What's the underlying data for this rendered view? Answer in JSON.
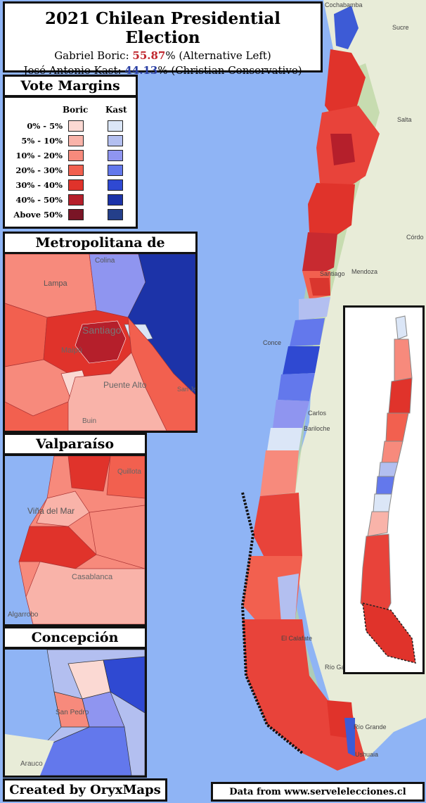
{
  "title": "2021 Chilean Presidential Election",
  "candidates": [
    {
      "prefix": "Gabriel Boric: ",
      "percent": "55.87",
      "suffix": "% (Alternative Left)",
      "color": "#c0262d"
    },
    {
      "prefix": "José Antonio Kast: ",
      "percent": "44.13",
      "suffix": "% (Christian Conservative)",
      "color": "#2a3fa3"
    }
  ],
  "legend": {
    "title": "Vote Margins",
    "col_boric": "Boric",
    "col_kast": "Kast",
    "rows": [
      {
        "label": "0% - 5%",
        "boric": "#fbd9d3",
        "kast": "#dbe6f7"
      },
      {
        "label": "5% - 10%",
        "boric": "#f9b3a9",
        "kast": "#b3bff0"
      },
      {
        "label": "10% - 20%",
        "boric": "#f78a7c",
        "kast": "#8f95f0"
      },
      {
        "label": "20% - 30%",
        "boric": "#f2604f",
        "kast": "#6378ec"
      },
      {
        "label": "30% - 40%",
        "boric": "#e0332b",
        "kast": "#2f49d2"
      },
      {
        "label": "40% - 50%",
        "boric": "#b51f2b",
        "kast": "#1c33a8"
      },
      {
        "label": "Above 50%",
        "boric": "#7a1526",
        "kast": "#243f8a"
      }
    ]
  },
  "insets": {
    "santiago": {
      "title": "Metropolitana de Santiago",
      "labels": {
        "lampa": "Lampa",
        "colina": "Colina",
        "santiago": "Santiago",
        "maipu": "Maipú",
        "puente_alto": "Puente Alto",
        "buin": "Buin",
        "san_jose": "San José de Maipo"
      }
    },
    "valparaiso": {
      "title": "Valparaíso",
      "labels": {
        "quillota": "Quillota",
        "vina": "Viña del Mar",
        "casablanca": "Casablanca",
        "algarrobo": "Algarrobo"
      }
    },
    "concepcion": {
      "title": "Concepción",
      "labels": {
        "san_pedro": "San Pedro",
        "arauco": "Arauco"
      }
    }
  },
  "basemap_labels": {
    "cochabamba": "Cochabamba",
    "sucre": "Sucre",
    "salta": "Salta",
    "cordoba": "Córdo",
    "mendoza": "Mendoza",
    "concepcion": "Conce",
    "santiago": "Santiago",
    "carlos": "Carlos",
    "bariloche": "Bariloche",
    "el_calafate": "El Calafate",
    "rio_grande": "Río Grande",
    "ushuaia": "Ushuaia",
    "rio_ga": "Río Ga"
  },
  "credit": "Created by OryxMaps",
  "source": "Data from www.servelelecciones.cl"
}
